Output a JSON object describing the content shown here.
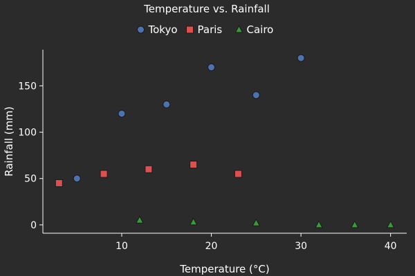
{
  "chart_data": {
    "type": "scatter",
    "title": "Temperature vs. Rainfall",
    "xlabel": "Temperature (°C)",
    "ylabel": "Rainfall (mm)",
    "xlim": [
      1.2,
      41.8
    ],
    "ylim": [
      -9,
      189
    ],
    "xticks": [
      10,
      20,
      30,
      40
    ],
    "yticks": [
      0,
      50,
      100,
      150
    ],
    "grid": false,
    "legend_position": "top-center",
    "series": [
      {
        "name": "Tokyo",
        "marker": "circle",
        "color": "#4c72b0",
        "points": [
          {
            "x": 5,
            "y": 50
          },
          {
            "x": 10,
            "y": 120
          },
          {
            "x": 15,
            "y": 130
          },
          {
            "x": 20,
            "y": 170
          },
          {
            "x": 25,
            "y": 140
          },
          {
            "x": 30,
            "y": 180
          }
        ]
      },
      {
        "name": "Paris",
        "marker": "square",
        "color": "#dd5050",
        "points": [
          {
            "x": 3,
            "y": 45
          },
          {
            "x": 8,
            "y": 55
          },
          {
            "x": 13,
            "y": 60
          },
          {
            "x": 18,
            "y": 65
          },
          {
            "x": 23,
            "y": 55
          }
        ]
      },
      {
        "name": "Cairo",
        "marker": "triangle",
        "color": "#3a9a3a",
        "points": [
          {
            "x": 12,
            "y": 5
          },
          {
            "x": 18,
            "y": 3
          },
          {
            "x": 25,
            "y": 2
          },
          {
            "x": 32,
            "y": 0
          },
          {
            "x": 36,
            "y": 0
          },
          {
            "x": 40,
            "y": 0
          }
        ]
      }
    ]
  }
}
